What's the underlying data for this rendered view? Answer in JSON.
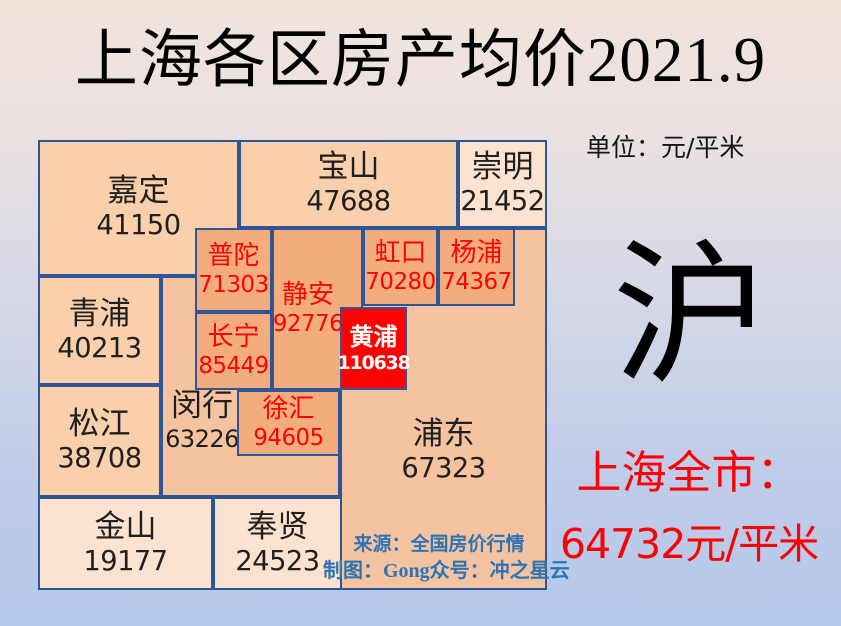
{
  "title": "上海各区房产均价2021.9",
  "unit_label": "单位：元/平米",
  "region_abbrev": "沪",
  "citywide": {
    "label": "上海全市：",
    "value": "64732元/平米"
  },
  "footer": {
    "source": "来源：全国房价行情",
    "credit": "制图：Gong众号：冲之星云"
  },
  "colors": {
    "border": "#2E5694",
    "light": "#F9CFAC",
    "lighter": "#FBE3D0",
    "mid": "#F5C3A0",
    "hot": "#F3AC7D",
    "red": "#FE0101",
    "dark-text": "#202020",
    "red-text": "#FB0204",
    "blue-text": "#2E74B5"
  },
  "districts": [
    {
      "id": "jiading",
      "name": "嘉定",
      "price": "41150"
    },
    {
      "id": "baoshan",
      "name": "宝山",
      "price": "47688"
    },
    {
      "id": "chongming",
      "name": "崇明",
      "price": "21452"
    },
    {
      "id": "pudong",
      "name": "浦东",
      "price": "67323"
    },
    {
      "id": "minhang",
      "name": "闵行",
      "price": "63226"
    },
    {
      "id": "qingpu",
      "name": "青浦",
      "price": "40213"
    },
    {
      "id": "songjiang",
      "name": "松江",
      "price": "38708"
    },
    {
      "id": "jinshan",
      "name": "金山",
      "price": "19177"
    },
    {
      "id": "fengxian",
      "name": "奉贤",
      "price": "24523"
    },
    {
      "id": "putuo",
      "name": "普陀",
      "price": "71303"
    },
    {
      "id": "changning",
      "name": "长宁",
      "price": "85449"
    },
    {
      "id": "jingan",
      "name": "静安",
      "price": "92776"
    },
    {
      "id": "hongkou",
      "name": "虹口",
      "price": "70280"
    },
    {
      "id": "yangpu",
      "name": "杨浦",
      "price": "74367"
    },
    {
      "id": "xuhui",
      "name": "徐汇",
      "price": "94605"
    },
    {
      "id": "huangpu",
      "name": "黄浦",
      "price": "110638"
    }
  ],
  "chart_data": {
    "type": "heatmap",
    "title": "上海各区房产均价2021.9",
    "unit": "元/平米",
    "categories": [
      "嘉定",
      "宝山",
      "崇明",
      "浦东",
      "闵行",
      "青浦",
      "松江",
      "金山",
      "奉贤",
      "普陀",
      "长宁",
      "静安",
      "虹口",
      "杨浦",
      "徐汇",
      "黄浦"
    ],
    "values": [
      41150,
      47688,
      21452,
      67323,
      63226,
      40213,
      38708,
      19177,
      24523,
      71303,
      85449,
      92776,
      70280,
      74367,
      94605,
      110638
    ],
    "citywide_average": 64732,
    "highlight_max": {
      "district": "黄浦",
      "value": 110638
    },
    "legend_position": "none",
    "layout": "schematic-map-of-shanghai"
  }
}
